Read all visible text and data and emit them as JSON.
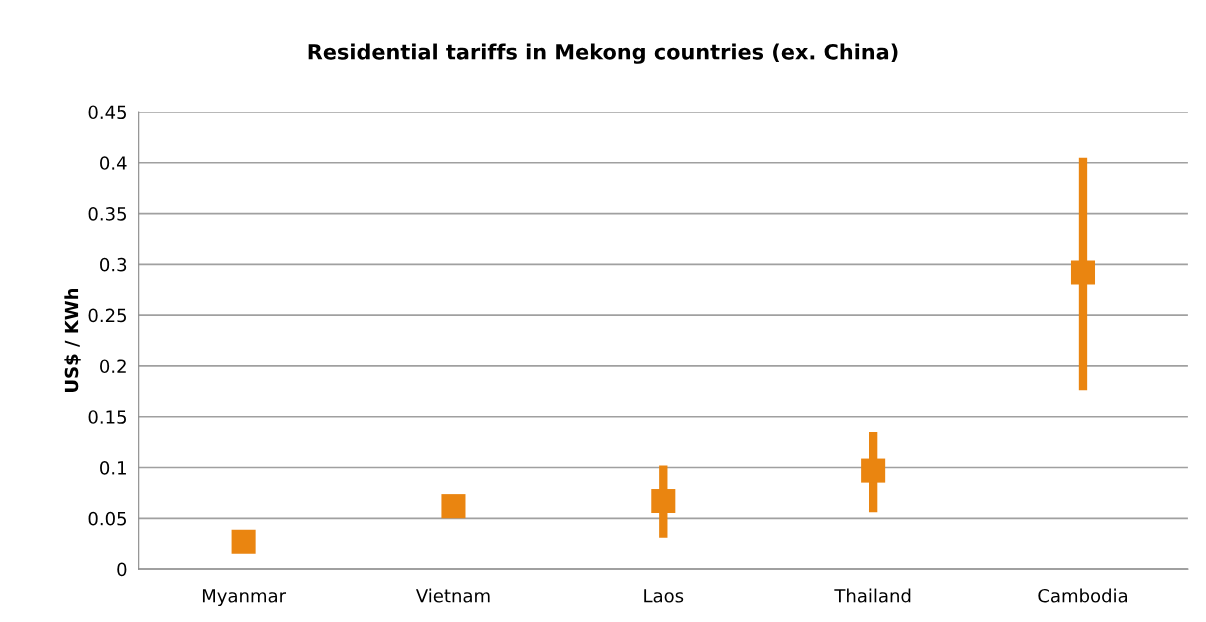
{
  "chart_data": {
    "type": "scatter",
    "title": "Residential tariffs in Mekong countries (ex. China)",
    "ylabel": "US$ / KWh",
    "categories": [
      "Myanmar",
      "Vietnam",
      "Laos",
      "Thailand",
      "Cambodia"
    ],
    "values": [
      0.027,
      0.062,
      0.067,
      0.097,
      0.292
    ],
    "errors": [
      null,
      null,
      [
        0.031,
        0.102
      ],
      [
        0.056,
        0.135
      ],
      [
        0.176,
        0.405
      ]
    ],
    "color": "#ea8510",
    "marker": "square",
    "ylim": [
      0,
      0.45
    ],
    "yticks": [
      0,
      0.05,
      0.1,
      0.15,
      0.2,
      0.25,
      0.3,
      0.35,
      0.4,
      0.45
    ],
    "grid": "y"
  }
}
